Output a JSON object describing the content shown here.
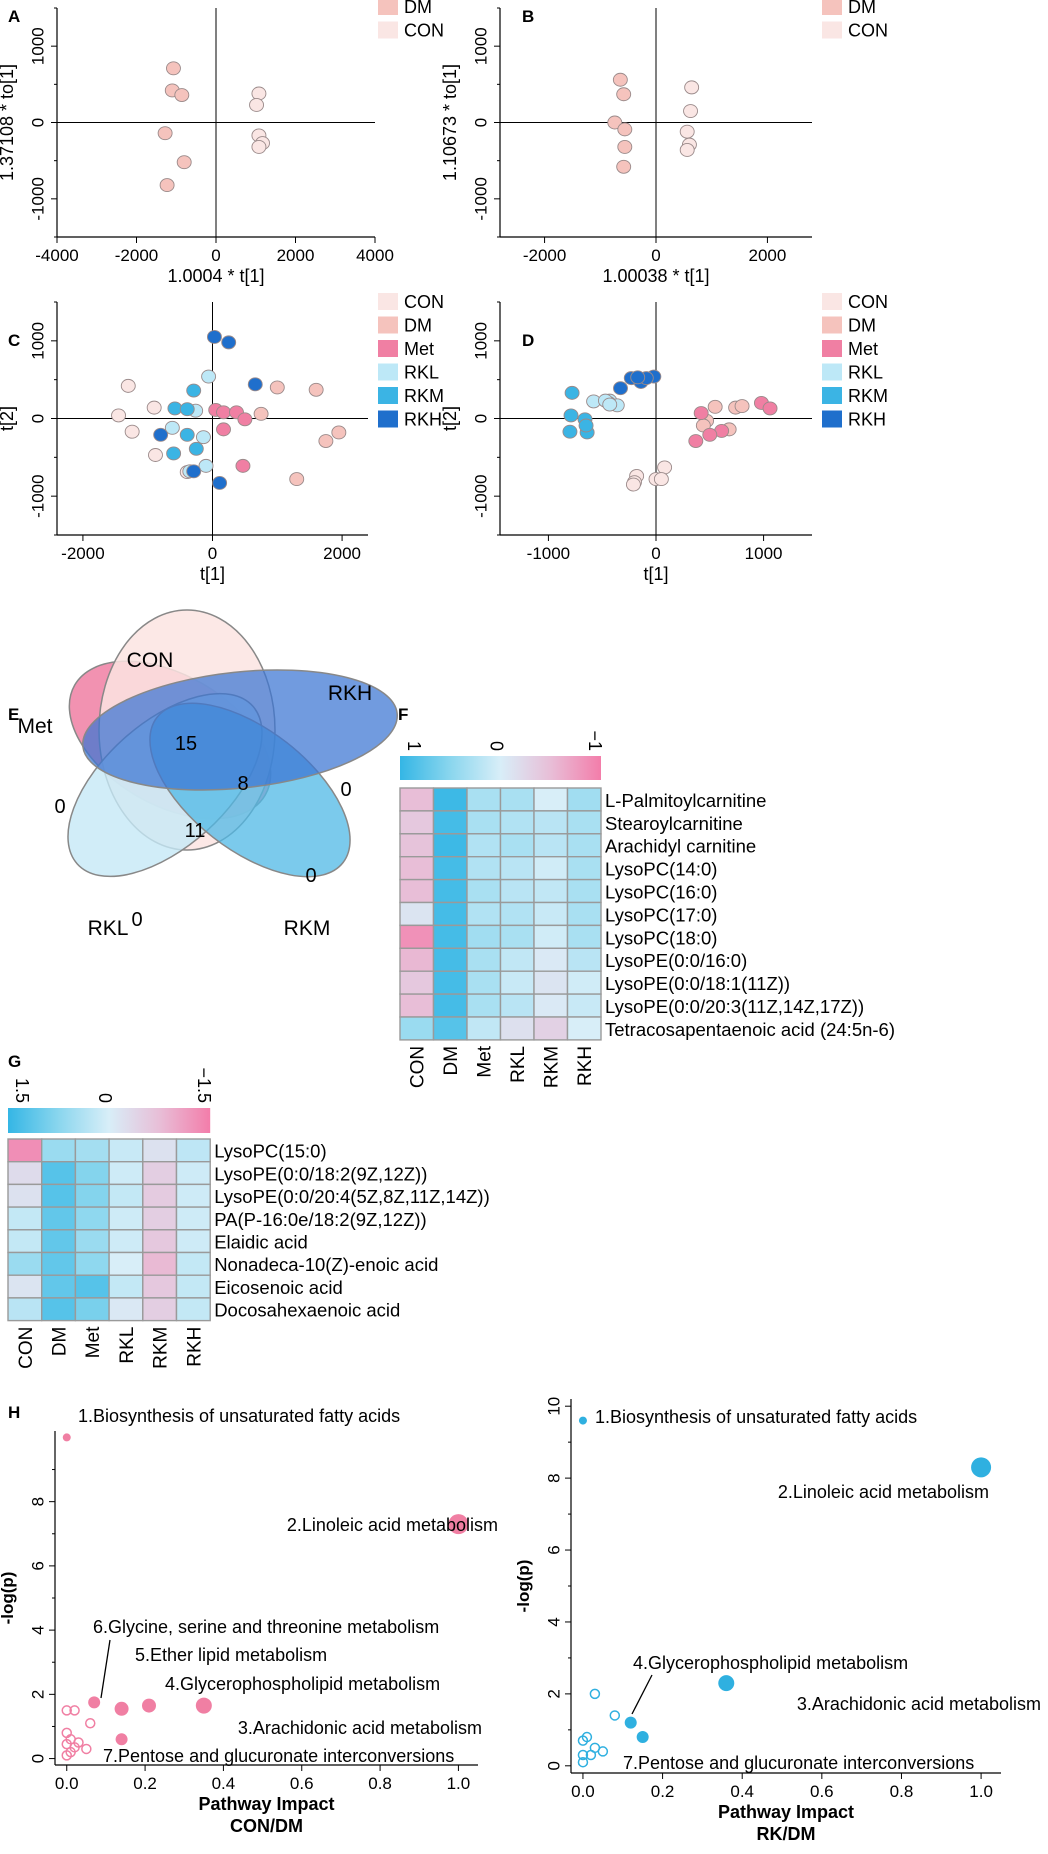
{
  "panel_letters": [
    "A",
    "B",
    "C",
    "D",
    "E",
    "F",
    "G",
    "H"
  ],
  "colors": {
    "CON": "#fae6e4",
    "DM": "#f5c3bd",
    "Met": "#f07fa3",
    "RKL": "#bde8f7",
    "RKM": "#3bb4e4",
    "RKH": "#1f6fcc",
    "pinkPath": "#f07fa3",
    "bluePath": "#2fb0e0"
  },
  "chart_data": [
    {
      "panel": "A",
      "type": "scatter",
      "xlabel": "1.0004 * t[1]",
      "ylabel": "1.37108 * to[1]",
      "xlim": [
        -4000,
        4000
      ],
      "ylim": [
        -1500,
        1500
      ],
      "xticks": [
        -4000,
        -2000,
        0,
        2000,
        4000
      ],
      "yticks": [
        -1000,
        0,
        1000
      ],
      "legend": [
        {
          "name": "DM",
          "color": "#f5c3bd"
        },
        {
          "name": "CON",
          "color": "#fae6e4"
        }
      ],
      "series": [
        {
          "name": "DM",
          "color": "#f5c3bd",
          "points": [
            [
              -1070,
              710
            ],
            [
              -1100,
              420
            ],
            [
              -860,
              360
            ],
            [
              -1280,
              -140
            ],
            [
              -800,
              -520
            ],
            [
              -1230,
              -820
            ]
          ]
        },
        {
          "name": "CON",
          "color": "#fae6e4",
          "points": [
            [
              1080,
              380
            ],
            [
              1020,
              230
            ],
            [
              1080,
              -170
            ],
            [
              1170,
              -270
            ],
            [
              1080,
              -320
            ]
          ]
        }
      ]
    },
    {
      "panel": "B",
      "type": "scatter",
      "xlabel": "1.00038 * t[1]",
      "ylabel": "1.10673 * to[1]",
      "xlim": [
        -2800,
        2800
      ],
      "ylim": [
        -1500,
        1500
      ],
      "xticks": [
        -2000,
        0,
        2000
      ],
      "yticks": [
        -1000,
        0,
        1000
      ],
      "legend": [
        {
          "name": "DM",
          "color": "#f5c3bd"
        },
        {
          "name": "CON",
          "color": "#fae6e4"
        }
      ],
      "series": [
        {
          "name": "DM",
          "color": "#f5c3bd",
          "points": [
            [
              -640,
              560
            ],
            [
              -580,
              370
            ],
            [
              -740,
              0
            ],
            [
              -560,
              -90
            ],
            [
              -560,
              -320
            ],
            [
              -580,
              -580
            ]
          ]
        },
        {
          "name": "CON",
          "color": "#fae6e4",
          "points": [
            [
              640,
              460
            ],
            [
              620,
              150
            ],
            [
              560,
              -120
            ],
            [
              600,
              -290
            ],
            [
              560,
              -360
            ]
          ]
        }
      ]
    },
    {
      "panel": "C",
      "type": "scatter",
      "xlabel": "t[1]",
      "ylabel": "t[2]",
      "xlim": [
        -2400,
        2400
      ],
      "ylim": [
        -1500,
        1500
      ],
      "xticks": [
        -2000,
        0,
        2000
      ],
      "yticks": [
        -1000,
        0,
        1000
      ],
      "legend": [
        {
          "name": "CON",
          "color": "#fae6e4"
        },
        {
          "name": "DM",
          "color": "#f5c3bd"
        },
        {
          "name": "Met",
          "color": "#f07fa3"
        },
        {
          "name": "RKL",
          "color": "#bde8f7"
        },
        {
          "name": "RKM",
          "color": "#3bb4e4"
        },
        {
          "name": "RKH",
          "color": "#1f6fcc"
        }
      ],
      "series": [
        {
          "name": "CON",
          "color": "#fae6e4",
          "points": [
            [
              -1300,
              420
            ],
            [
              -900,
              140
            ],
            [
              -1450,
              40
            ],
            [
              -1240,
              -170
            ],
            [
              -880,
              -470
            ],
            [
              -390,
              -690
            ]
          ]
        },
        {
          "name": "DM",
          "color": "#f5c3bd",
          "points": [
            [
              1000,
              400
            ],
            [
              1600,
              370
            ],
            [
              750,
              60
            ],
            [
              1950,
              -180
            ],
            [
              1750,
              -290
            ],
            [
              1300,
              -780
            ]
          ]
        },
        {
          "name": "Met",
          "color": "#f07fa3",
          "points": [
            [
              50,
              110
            ],
            [
              170,
              80
            ],
            [
              370,
              80
            ],
            [
              500,
              -10
            ],
            [
              170,
              -140
            ],
            [
              470,
              -610
            ]
          ]
        },
        {
          "name": "RKL",
          "color": "#bde8f7",
          "points": [
            [
              -60,
              540
            ],
            [
              -260,
              100
            ],
            [
              -620,
              -120
            ],
            [
              -140,
              -240
            ],
            [
              -100,
              -610
            ],
            [
              -350,
              -680
            ]
          ]
        },
        {
          "name": "RKM",
          "color": "#3bb4e4",
          "points": [
            [
              -290,
              360
            ],
            [
              -580,
              130
            ],
            [
              -390,
              120
            ],
            [
              -390,
              -210
            ],
            [
              -250,
              -390
            ],
            [
              -600,
              -450
            ]
          ]
        },
        {
          "name": "RKH",
          "color": "#1f6fcc",
          "points": [
            [
              30,
              1050
            ],
            [
              250,
              980
            ],
            [
              660,
              440
            ],
            [
              -800,
              -210
            ],
            [
              -290,
              -680
            ],
            [
              110,
              -830
            ]
          ]
        }
      ]
    },
    {
      "panel": "D",
      "type": "scatter",
      "xlabel": "t[1]",
      "ylabel": "t[2]",
      "xlim": [
        -1450,
        1450
      ],
      "ylim": [
        -1500,
        1500
      ],
      "xticks": [
        -1000,
        0,
        1000
      ],
      "yticks": [
        -1000,
        0,
        1000
      ],
      "legend": [
        {
          "name": "CON",
          "color": "#fae6e4"
        },
        {
          "name": "DM",
          "color": "#f5c3bd"
        },
        {
          "name": "Met",
          "color": "#f07fa3"
        },
        {
          "name": "RKL",
          "color": "#bde8f7"
        },
        {
          "name": "RKM",
          "color": "#3bb4e4"
        },
        {
          "name": "RKH",
          "color": "#1f6fcc"
        }
      ],
      "series": [
        {
          "name": "CON",
          "color": "#fae6e4",
          "points": [
            [
              80,
              -630
            ],
            [
              0,
              -780
            ],
            [
              -180,
              -740
            ],
            [
              -200,
              -820
            ],
            [
              50,
              -780
            ],
            [
              -210,
              -850
            ]
          ]
        },
        {
          "name": "DM",
          "color": "#f5c3bd",
          "points": [
            [
              550,
              150
            ],
            [
              740,
              140
            ],
            [
              800,
              160
            ],
            [
              470,
              -30
            ],
            [
              680,
              -140
            ],
            [
              440,
              -90
            ]
          ]
        },
        {
          "name": "Met",
          "color": "#f07fa3",
          "points": [
            [
              420,
              70
            ],
            [
              980,
              200
            ],
            [
              1060,
              130
            ],
            [
              370,
              -290
            ],
            [
              610,
              -160
            ],
            [
              500,
              -210
            ]
          ]
        },
        {
          "name": "RKL",
          "color": "#bde8f7",
          "points": [
            [
              -580,
              220
            ],
            [
              -430,
              230
            ],
            [
              -360,
              170
            ],
            [
              -440,
              200
            ],
            [
              -470,
              230
            ],
            [
              -430,
              180
            ]
          ]
        },
        {
          "name": "RKM",
          "color": "#3bb4e4",
          "points": [
            [
              -780,
              330
            ],
            [
              -790,
              40
            ],
            [
              -660,
              -10
            ],
            [
              -640,
              -180
            ],
            [
              -800,
              -170
            ],
            [
              -650,
              -90
            ]
          ]
        },
        {
          "name": "RKH",
          "color": "#1f6fcc",
          "points": [
            [
              -230,
              520
            ],
            [
              -140,
              470
            ],
            [
              -20,
              540
            ],
            [
              -90,
              520
            ],
            [
              -330,
              390
            ],
            [
              -170,
              530
            ]
          ]
        }
      ]
    },
    {
      "panel": "E",
      "type": "venn",
      "sets": [
        "CON",
        "RKH",
        "Met",
        "RKL",
        "RKM"
      ],
      "values": {
        "CON_only": "15",
        "Met_only": "0",
        "RKH_only": "0",
        "RKL_only": "0",
        "RKM_only": "0",
        "CON_RKH": "8",
        "all": "11"
      }
    },
    {
      "panel": "F",
      "type": "heatmap",
      "colorbar": {
        "high_label": "1",
        "mid_label": "0",
        "low_label": "−1"
      },
      "columns": [
        "CON",
        "DM",
        "Met",
        "RKL",
        "RKM",
        "RKH"
      ],
      "rows": [
        "L-Palmitoylcarnitine",
        "Stearoylcarnitine",
        "Arachidyl carnitine",
        "LysoPC(14:0)",
        "LysoPC(16:0)",
        "LysoPC(17:0)",
        "LysoPC(18:0)",
        "LysoPE(0:0/16:0)",
        "LysoPE(0:0/18:1(11Z))",
        "LysoPE(0:0/20:3(11Z,14Z,17Z))",
        "Tetracosapentaenoic acid (24:5n-6)"
      ],
      "values": [
        [
          -0.5,
          0.95,
          0.3,
          0.3,
          0.0,
          0.35
        ],
        [
          -0.4,
          0.9,
          0.3,
          0.25,
          0.2,
          0.3
        ],
        [
          -0.45,
          0.95,
          0.25,
          0.3,
          0.2,
          0.3
        ],
        [
          -0.5,
          0.9,
          0.25,
          0.2,
          0.05,
          0.3
        ],
        [
          -0.5,
          0.9,
          0.3,
          0.2,
          0.15,
          0.3
        ],
        [
          -0.1,
          0.9,
          0.25,
          0.25,
          0.1,
          0.3
        ],
        [
          -0.85,
          0.9,
          0.35,
          0.3,
          0.05,
          0.3
        ],
        [
          -0.55,
          0.9,
          0.3,
          0.15,
          -0.05,
          0.2
        ],
        [
          -0.4,
          0.9,
          0.3,
          0.1,
          -0.1,
          0.05
        ],
        [
          -0.5,
          0.9,
          0.3,
          0.2,
          -0.05,
          0.1
        ],
        [
          0.4,
          0.8,
          0.15,
          -0.15,
          -0.3,
          0.0
        ]
      ]
    },
    {
      "panel": "G",
      "type": "heatmap",
      "colorbar": {
        "high_label": "1.5",
        "mid_label": "0",
        "low_label": "−1.5"
      },
      "columns": [
        "CON",
        "DM",
        "Met",
        "RKL",
        "RKM",
        "RKH"
      ],
      "rows": [
        "LysoPC(15:0)",
        "LysoPE(0:0/18:2(9Z,12Z))",
        "LysoPE(0:0/20:4(5Z,8Z,11Z,14Z))",
        "PA(P-16:0e/18:2(9Z,12Z))",
        "Elaidic acid",
        "Nonadeca-10(Z)-enoic acid",
        "Eicosenoic acid",
        "Docosahexaenoic acid"
      ],
      "values": [
        [
          -1.3,
          0.6,
          0.5,
          0.15,
          -0.2,
          0.25
        ],
        [
          -0.3,
          1.2,
          0.8,
          0.1,
          -0.5,
          0.1
        ],
        [
          -0.2,
          1.2,
          0.8,
          0.2,
          -0.55,
          0.1
        ],
        [
          0.2,
          1.1,
          0.7,
          0.1,
          -0.5,
          0.1
        ],
        [
          0.2,
          1.1,
          0.6,
          0.1,
          -0.6,
          0.1
        ],
        [
          0.6,
          1.1,
          0.7,
          0.0,
          -0.8,
          0.2
        ],
        [
          -0.15,
          1.1,
          1.2,
          0.2,
          -0.6,
          0.2
        ],
        [
          0.3,
          1.2,
          0.9,
          -0.1,
          -0.5,
          0.2
        ]
      ]
    },
    {
      "panel": "H1",
      "type": "scatter",
      "xlabel": "Pathway Impact",
      "subtitle": "CON/DM",
      "ylabel": "-log(p)",
      "xlim": [
        -0.03,
        1.05
      ],
      "ylim": [
        -0.2,
        10.2
      ],
      "xticks": [
        0.0,
        0.2,
        0.4,
        0.6,
        0.8,
        1.0
      ],
      "yticks": [
        0,
        2,
        4,
        6,
        8
      ],
      "color": "#f07fa3",
      "labeled_points": [
        {
          "label": "1.Biosynthesis of unsaturated fatty acids",
          "x": 0.0,
          "y": 10.0,
          "r": 4
        },
        {
          "label": "2.Linoleic acid metabolism",
          "x": 1.0,
          "y": 7.3,
          "r": 10
        },
        {
          "label": "3.Arachidonic acid metabolism",
          "x": 0.35,
          "y": 1.65,
          "r": 8
        },
        {
          "label": "4.Glycerophospholipid metabolism",
          "x": 0.21,
          "y": 1.65,
          "r": 7
        },
        {
          "label": "5.Ether lipid metabolism",
          "x": 0.14,
          "y": 1.55,
          "r": 7
        },
        {
          "label": "6.Glycine, serine and threonine metabolism",
          "x": 0.07,
          "y": 1.75,
          "r": 6
        },
        {
          "label": "7.Pentose and glucuronate interconversions",
          "x": 0.14,
          "y": 0.6,
          "r": 6
        }
      ],
      "minor_points": [
        [
          0.0,
          1.5
        ],
        [
          0.02,
          1.5
        ],
        [
          0.0,
          0.8
        ],
        [
          0.01,
          0.6
        ],
        [
          0.0,
          0.45
        ],
        [
          0.02,
          0.35
        ],
        [
          0.01,
          0.2
        ],
        [
          0.03,
          0.5
        ],
        [
          0.05,
          0.3
        ],
        [
          0.06,
          1.1
        ],
        [
          0.0,
          0.1
        ]
      ]
    },
    {
      "panel": "H2",
      "type": "scatter",
      "xlabel": "Pathway Impact",
      "subtitle": "RK/DM",
      "ylabel": "-log(p)",
      "xlim": [
        -0.03,
        1.05
      ],
      "ylim": [
        -0.2,
        10.2
      ],
      "xticks": [
        0.0,
        0.2,
        0.4,
        0.6,
        0.8,
        1.0
      ],
      "yticks": [
        0,
        2,
        4,
        6,
        8,
        10
      ],
      "color": "#2fb0e0",
      "labeled_points": [
        {
          "label": "1.Biosynthesis of unsaturated fatty acids",
          "x": 0.0,
          "y": 9.6,
          "r": 4
        },
        {
          "label": "2.Linoleic acid metabolism",
          "x": 1.0,
          "y": 8.3,
          "r": 10
        },
        {
          "label": "3.Arachidonic acid metabolism",
          "x": 0.36,
          "y": 2.3,
          "r": 8
        },
        {
          "label": "4.Glycerophospholipid metabolism",
          "x": 0.12,
          "y": 1.2,
          "r": 6
        },
        {
          "label": "7.Pentose and glucuronate interconversions",
          "x": 0.15,
          "y": 0.8,
          "r": 6
        }
      ],
      "minor_points": [
        [
          0.0,
          0.7
        ],
        [
          0.01,
          0.8
        ],
        [
          0.0,
          0.3
        ],
        [
          0.02,
          0.3
        ],
        [
          0.03,
          0.5
        ],
        [
          0.05,
          0.4
        ],
        [
          0.03,
          2.0
        ],
        [
          0.08,
          1.4
        ],
        [
          0.0,
          0.1
        ]
      ]
    }
  ]
}
